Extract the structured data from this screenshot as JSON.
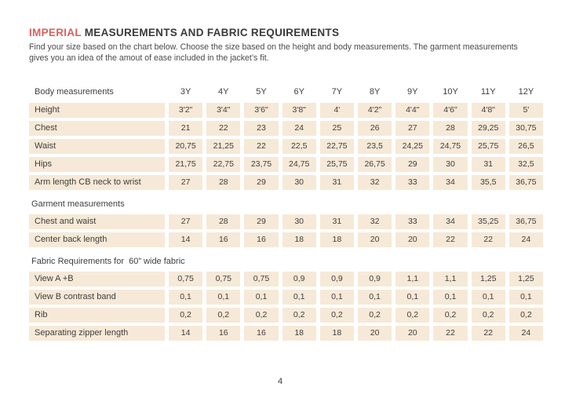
{
  "page": {
    "title_accent": "IMPERIAL",
    "title_rest": " MEASUREMENTS AND FABRIC REQUIREMENTS",
    "subtitle_line1": "Find your size based on the chart below. Choose the size based on the height and body measurements. The garment measurements",
    "subtitle_line2": "gives you an idea of the amout of ease included in the jacket’s fit.",
    "page_number": "4"
  },
  "colors": {
    "accent": "#d9605f",
    "row_shade": "#f6e9d7",
    "text": "#3d3d3d"
  },
  "table": {
    "header": {
      "label": "Body measurements",
      "columns": [
        "3Y",
        "4Y",
        "5Y",
        "6Y",
        "7Y",
        "8Y",
        "9Y",
        "10Y",
        "11Y",
        "12Y"
      ]
    },
    "rows": [
      {
        "type": "data",
        "label": "Height",
        "values": [
          "3'2\"",
          "3'4\"",
          "3'6\"",
          "3'8\"",
          "4'",
          "4'2\"",
          "4'4\"",
          "4'6\"",
          "4'8\"",
          "5'"
        ]
      },
      {
        "type": "data",
        "label": "Chest",
        "values": [
          "21",
          "22",
          "23",
          "24",
          "25",
          "26",
          "27",
          "28",
          "29,25",
          "30,75"
        ]
      },
      {
        "type": "data",
        "label": "Waist",
        "values": [
          "20,75",
          "21,25",
          "22",
          "22,5",
          "22,75",
          "23,5",
          "24,25",
          "24,75",
          "25,75",
          "26,5"
        ]
      },
      {
        "type": "data",
        "label": "Hips",
        "values": [
          "21,75",
          "22,75",
          "23,75",
          "24,75",
          "25,75",
          "26,75",
          "29",
          "30",
          "31",
          "32,5"
        ]
      },
      {
        "type": "data",
        "label": "Arm length CB neck to wrist",
        "values": [
          "27",
          "28",
          "29",
          "30",
          "31",
          "32",
          "33",
          "34",
          "35,5",
          "36,75"
        ]
      },
      {
        "type": "section",
        "label": "Garment measurements"
      },
      {
        "type": "data",
        "label": "Chest and waist",
        "values": [
          "27",
          "28",
          "29",
          "30",
          "31",
          "32",
          "33",
          "34",
          "35,25",
          "36,75"
        ]
      },
      {
        "type": "data",
        "label": "Center back length",
        "values": [
          "14",
          "16",
          "16",
          "18",
          "18",
          "20",
          "20",
          "22",
          "22",
          "24"
        ]
      },
      {
        "type": "section",
        "label": "Fabric Requirements for  60” wide fabric"
      },
      {
        "type": "data",
        "label": "View A +B",
        "values": [
          "0,75",
          "0,75",
          "0,75",
          "0,9",
          "0,9",
          "0,9",
          "1,1",
          "1,1",
          "1,25",
          "1,25"
        ]
      },
      {
        "type": "data",
        "label": "View B contrast band",
        "values": [
          "0,1",
          "0,1",
          "0,1",
          "0,1",
          "0,1",
          "0,1",
          "0,1",
          "0,1",
          "0,1",
          "0,1"
        ]
      },
      {
        "type": "data",
        "label": "Rib",
        "values": [
          "0,2",
          "0,2",
          "0,2",
          "0,2",
          "0,2",
          "0,2",
          "0,2",
          "0,2",
          "0,2",
          "0,2"
        ]
      },
      {
        "type": "data",
        "label": "Separating zipper length",
        "values": [
          "14",
          "16",
          "16",
          "18",
          "18",
          "20",
          "20",
          "22",
          "22",
          "24"
        ]
      }
    ]
  }
}
